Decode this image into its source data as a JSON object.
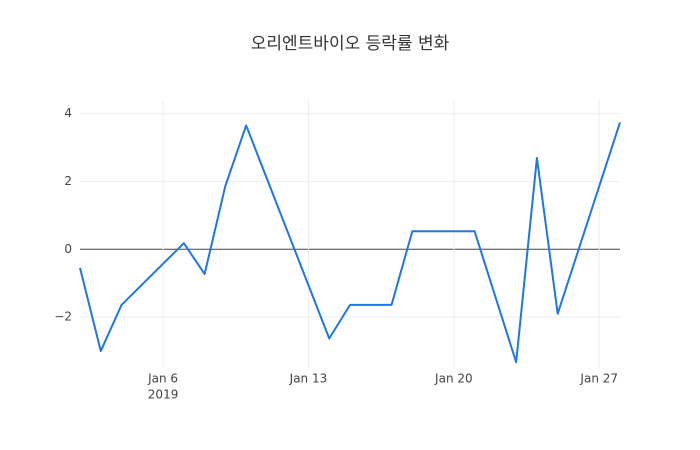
{
  "chart_data": {
    "type": "line",
    "title": "오리엔트바이오 등락률 변화",
    "x": [
      "2019-01-02",
      "2019-01-03",
      "2019-01-04",
      "2019-01-07",
      "2019-01-08",
      "2019-01-09",
      "2019-01-10",
      "2019-01-14",
      "2019-01-15",
      "2019-01-17",
      "2019-01-18",
      "2019-01-21",
      "2019-01-23",
      "2019-01-24",
      "2019-01-25",
      "2019-01-28"
    ],
    "series": [
      {
        "color": "#1f77e4",
        "values": [
          -0.55,
          -3.0,
          -1.64,
          0.18,
          -0.73,
          1.87,
          3.65,
          -2.63,
          -1.64,
          -1.64,
          0.53,
          0.53,
          -3.33,
          2.69,
          -1.9,
          3.74
        ]
      }
    ],
    "xlim": [
      "2019-01-02",
      "2019-01-28"
    ],
    "xticks": [
      {
        "value": "2019-01-06",
        "label": "Jan 6"
      },
      {
        "value": "2019-01-13",
        "label": "Jan 13"
      },
      {
        "value": "2019-01-20",
        "label": "Jan 20"
      },
      {
        "value": "2019-01-27",
        "label": "Jan 27"
      }
    ],
    "x_year": "2019",
    "ylim": [
      -3.5,
      4.4
    ],
    "yticks": [
      4,
      2,
      0,
      {
        "value": -2,
        "label": "−2"
      }
    ],
    "grid": true
  }
}
